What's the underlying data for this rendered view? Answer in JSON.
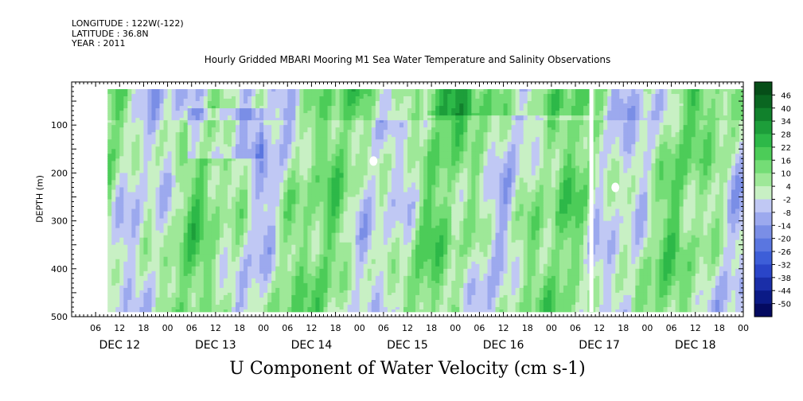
{
  "header": {
    "longitude": "LONGITUDE : 122W(-122)",
    "latitude": "LATITUDE : 36.8N",
    "year": "YEAR : 2011"
  },
  "chart_data": {
    "type": "heatmap",
    "title": "Hourly Gridded MBARI Mooring M1 Sea Water Temperature and Salinity Observations",
    "xlabel": "U Component of Water Velocity (cm s-1)",
    "ylabel": "DEPTH (m)",
    "x_axis": {
      "hour_ticks": [
        "06",
        "12",
        "18",
        "00",
        "06",
        "12",
        "18",
        "00",
        "06",
        "12",
        "18",
        "00",
        "06",
        "12",
        "18",
        "00",
        "06",
        "12",
        "18",
        "00",
        "06",
        "12",
        "18",
        "00",
        "06",
        "12",
        "18",
        "00"
      ],
      "hour_values": [
        6,
        12,
        18,
        24,
        30,
        36,
        42,
        48,
        54,
        60,
        66,
        72,
        78,
        84,
        90,
        96,
        102,
        108,
        114,
        120,
        126,
        132,
        138,
        144,
        150,
        156,
        162,
        168
      ],
      "day_labels": [
        "DEC 12",
        "DEC 13",
        "DEC 14",
        "DEC 15",
        "DEC 16",
        "DEC 17",
        "DEC 18"
      ],
      "range_hours_from_dec12_00": [
        0,
        168
      ]
    },
    "y_axis": {
      "ticks": [
        100,
        200,
        300,
        400,
        500
      ],
      "tick_labels": [
        "100",
        "200",
        "300",
        "400",
        "500"
      ],
      "range": [
        10,
        500
      ],
      "inverted": true,
      "data_range": [
        25,
        490
      ]
    },
    "colorbar": {
      "levels": [
        -50,
        -44,
        -38,
        -32,
        -26,
        -20,
        -14,
        -8,
        -2,
        4,
        10,
        16,
        22,
        28,
        34,
        40,
        46
      ],
      "labels": [
        "46",
        "40",
        "34",
        "28",
        "22",
        "16",
        "10",
        "4",
        "-2",
        "-8",
        "-14",
        "-20",
        "-26",
        "-32",
        "-38",
        "-44",
        "-50"
      ],
      "colors": [
        "#040a60",
        "#0b1a86",
        "#1a2ea8",
        "#2a45c8",
        "#3d5ed8",
        "#5a76e0",
        "#7a8ee6",
        "#9ca9ee",
        "#c0c8f4",
        "#c8f0c4",
        "#9ee898",
        "#74dd76",
        "#4ccc58",
        "#2db848",
        "#1d9e3a",
        "#11812c",
        "#0a6621",
        "#064e18"
      ]
    },
    "gaps": [
      {
        "x_range": [
          129.5,
          130.5
        ],
        "y_range": [
          25,
          490
        ]
      },
      {
        "x": 75.5,
        "y": 175
      },
      {
        "x": 136,
        "y": 230
      }
    ]
  }
}
